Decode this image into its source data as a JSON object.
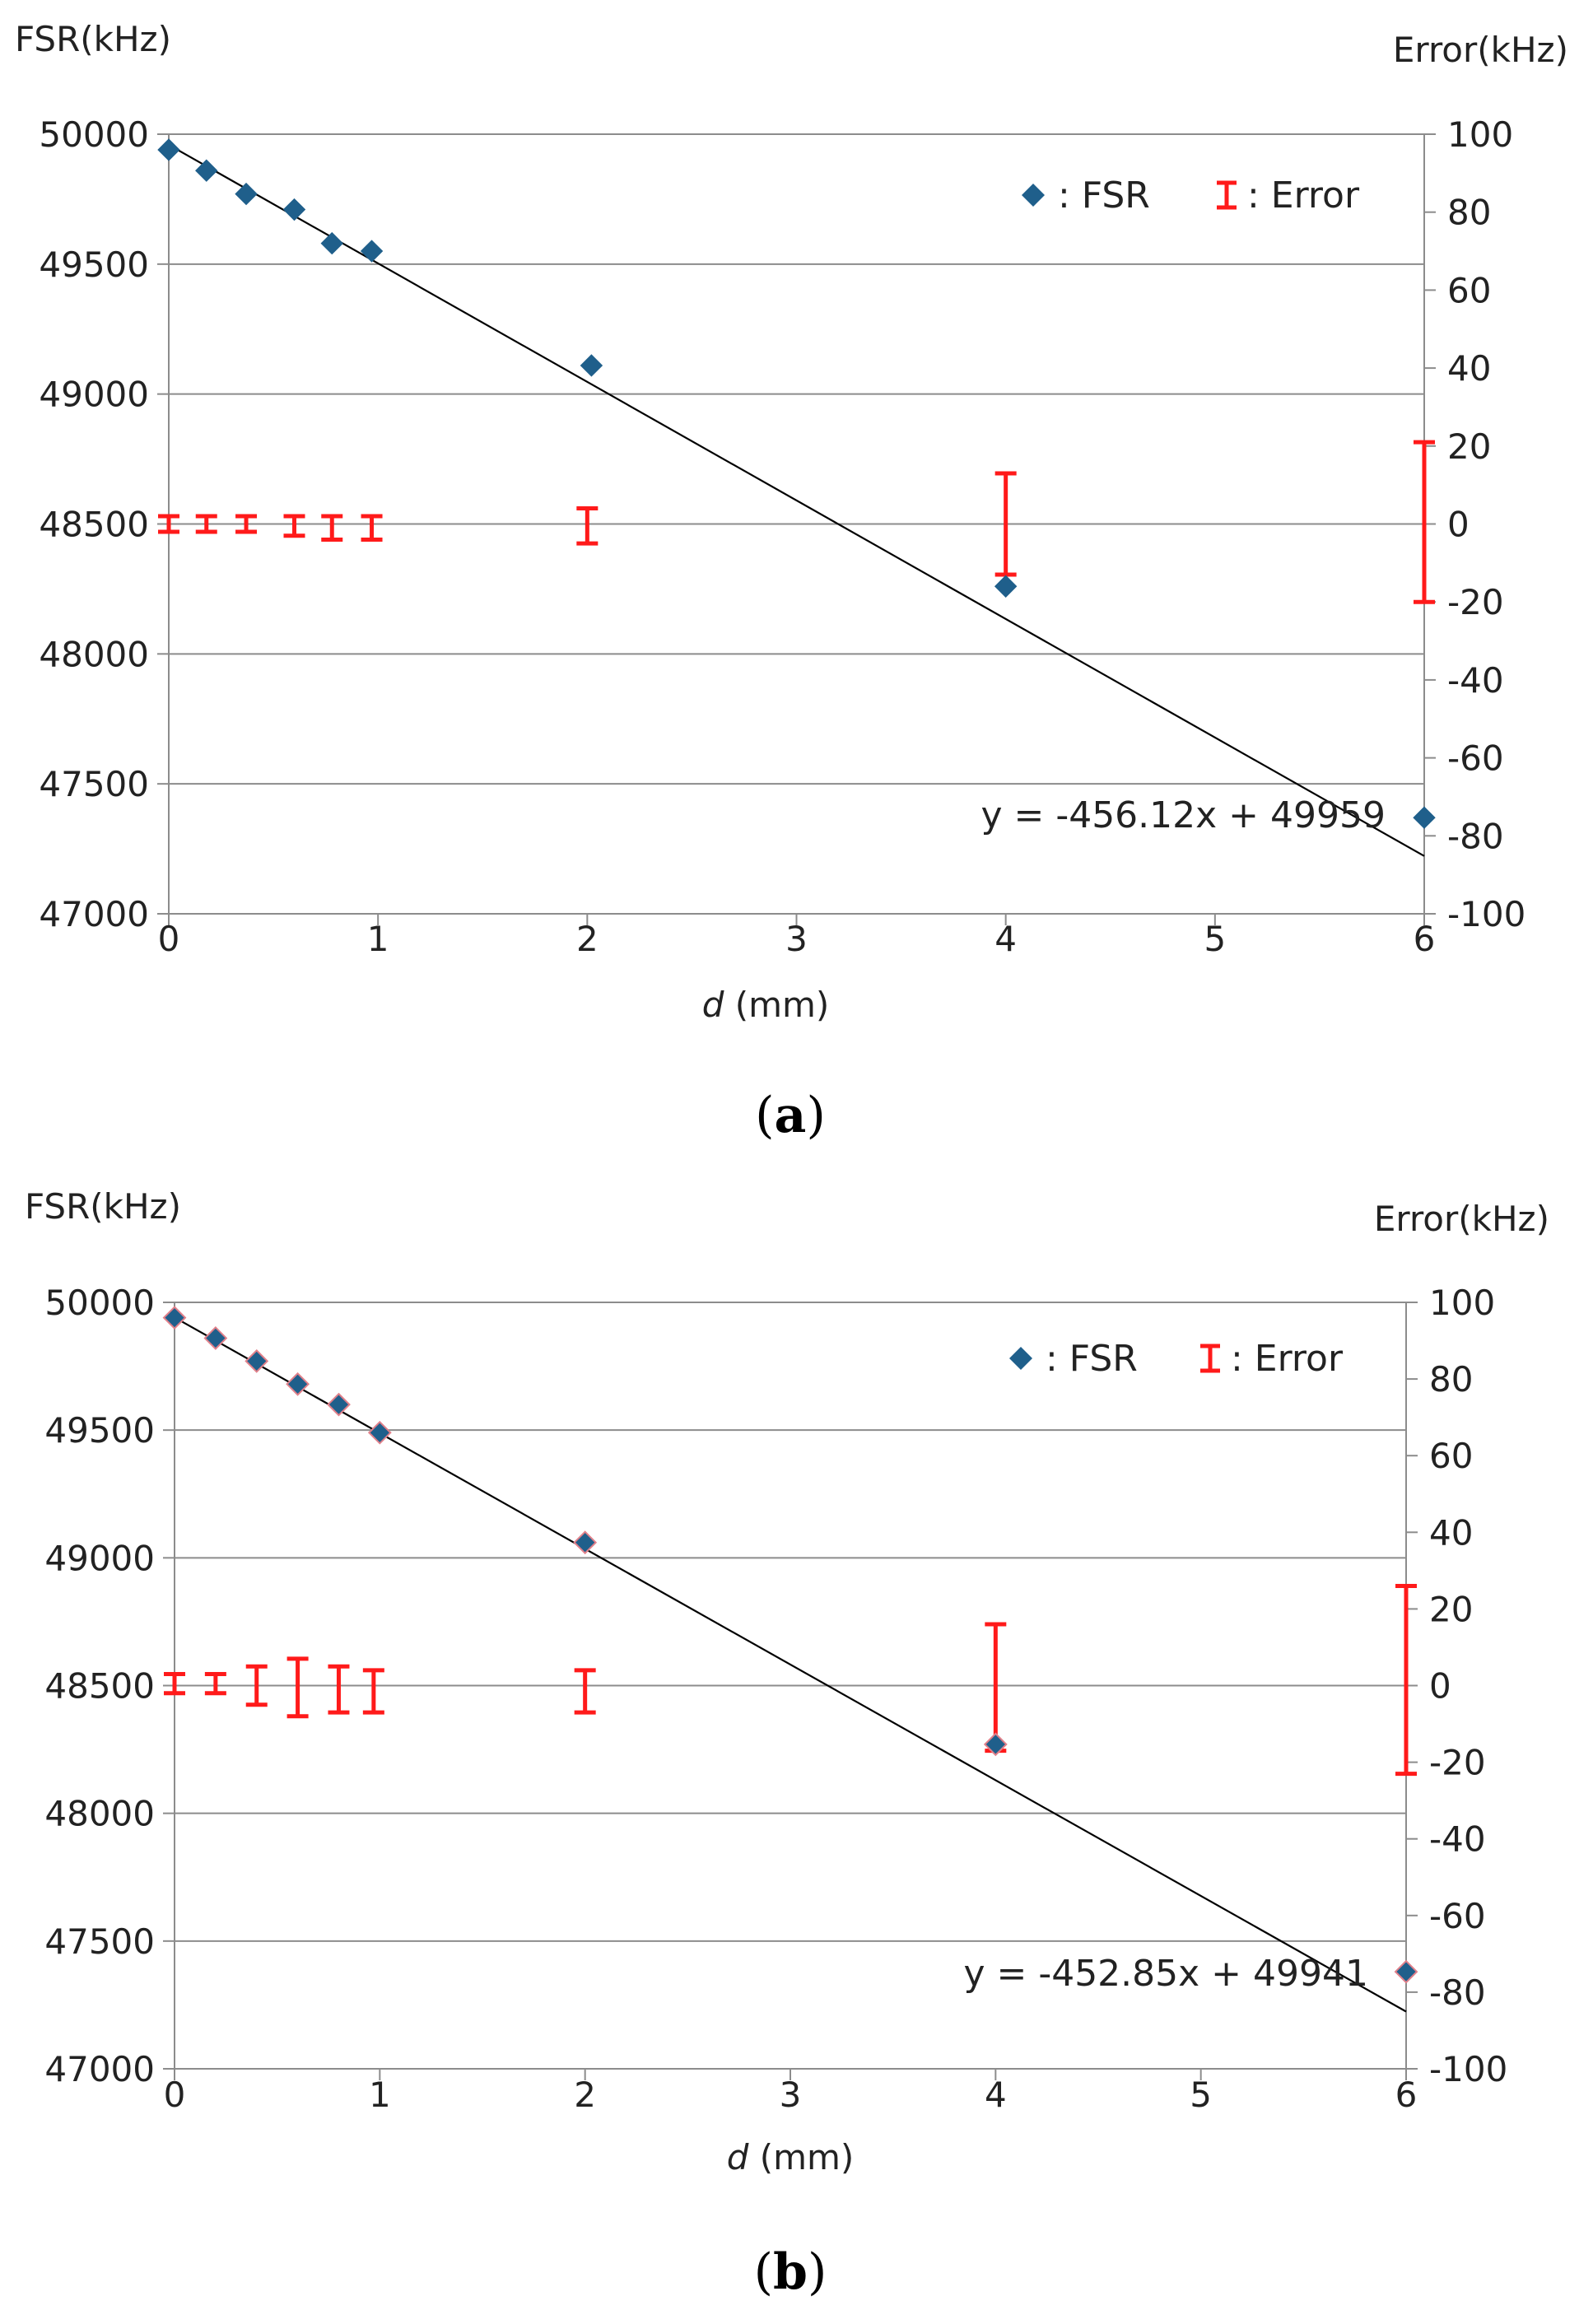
{
  "chart_data": [
    {
      "type": "scatter",
      "panel_label": {
        "open": "(",
        "letter": "a",
        "close": ")"
      },
      "xlabel": {
        "symbol": "d",
        "unit": " (mm)"
      },
      "ylabel_left": "FSR(kHz)",
      "ylabel_right": "Error(kHz)",
      "xlim": [
        0,
        6
      ],
      "ylim_left": [
        47000,
        50000
      ],
      "ylim_right": [
        -100,
        100
      ],
      "x_ticks": [
        "0",
        "1",
        "2",
        "3",
        "4",
        "5",
        "6"
      ],
      "y_ticks_left": [
        "47000",
        "47500",
        "48000",
        "48500",
        "49000",
        "49500",
        "50000"
      ],
      "y_ticks_right": [
        "-100",
        "-80",
        "-60",
        "-40",
        "-20",
        "0",
        "20",
        "40",
        "60",
        "80",
        "100"
      ],
      "grid": "horizontal",
      "legend": {
        "position": "top-right",
        "fsr_label": ": FSR",
        "error_label": ": Error"
      },
      "fit": {
        "slope": -456.12,
        "intercept": 49959,
        "label": "y = -456.12x + 49959"
      },
      "fsr_series": {
        "name": "FSR",
        "color": "#1f5f8b",
        "x": [
          0,
          0.18,
          0.37,
          0.6,
          0.78,
          0.97,
          2.02,
          4.0,
          6.0
        ],
        "y": [
          49940,
          49860,
          49770,
          49710,
          49580,
          49550,
          49110,
          48260,
          47370
        ]
      },
      "error_series": {
        "name": "Error",
        "color": "#ff1a1a",
        "x": [
          0,
          0.18,
          0.37,
          0.6,
          0.78,
          0.97,
          2.0,
          4.0,
          6.0
        ],
        "low": [
          -2,
          -2,
          -2,
          -3,
          -4,
          -4,
          -5,
          -13,
          -20
        ],
        "high": [
          2,
          2,
          2,
          2,
          2,
          2,
          4,
          13,
          21
        ]
      }
    },
    {
      "type": "scatter",
      "panel_label": {
        "open": "(",
        "letter": "b",
        "close": ")"
      },
      "xlabel": {
        "symbol": "d",
        "unit": " (mm)"
      },
      "ylabel_left": "FSR(kHz)",
      "ylabel_right": "Error(kHz)",
      "xlim": [
        0,
        6
      ],
      "ylim_left": [
        47000,
        50000
      ],
      "ylim_right": [
        -100,
        100
      ],
      "x_ticks": [
        "0",
        "1",
        "2",
        "3",
        "4",
        "5",
        "6"
      ],
      "y_ticks_left": [
        "47000",
        "47500",
        "48000",
        "48500",
        "49000",
        "49500",
        "50000"
      ],
      "y_ticks_right": [
        "-100",
        "-80",
        "-60",
        "-40",
        "-20",
        "0",
        "20",
        "40",
        "60",
        "80",
        "100"
      ],
      "grid": "horizontal",
      "legend": {
        "position": "top-right",
        "fsr_label": ": FSR",
        "error_label": ": Error"
      },
      "fit": {
        "slope": -452.85,
        "intercept": 49941,
        "label": "y = -452.85x + 49941"
      },
      "fsr_series": {
        "name": "FSR",
        "color": "#1f5f8b",
        "x": [
          0,
          0.2,
          0.4,
          0.6,
          0.8,
          1.0,
          2.0,
          4.0,
          6.0
        ],
        "y": [
          49940,
          49860,
          49770,
          49680,
          49600,
          49490,
          49060,
          48270,
          47380
        ]
      },
      "error_series": {
        "name": "Error",
        "color": "#ff1a1a",
        "x": [
          0,
          0.2,
          0.4,
          0.6,
          0.8,
          0.97,
          2.0,
          4.0,
          6.0
        ],
        "low": [
          -2,
          -2,
          -5,
          -8,
          -7,
          -7,
          -7,
          -17,
          -23
        ],
        "high": [
          3,
          3,
          5,
          7,
          5,
          4,
          4,
          16,
          26
        ]
      }
    }
  ]
}
